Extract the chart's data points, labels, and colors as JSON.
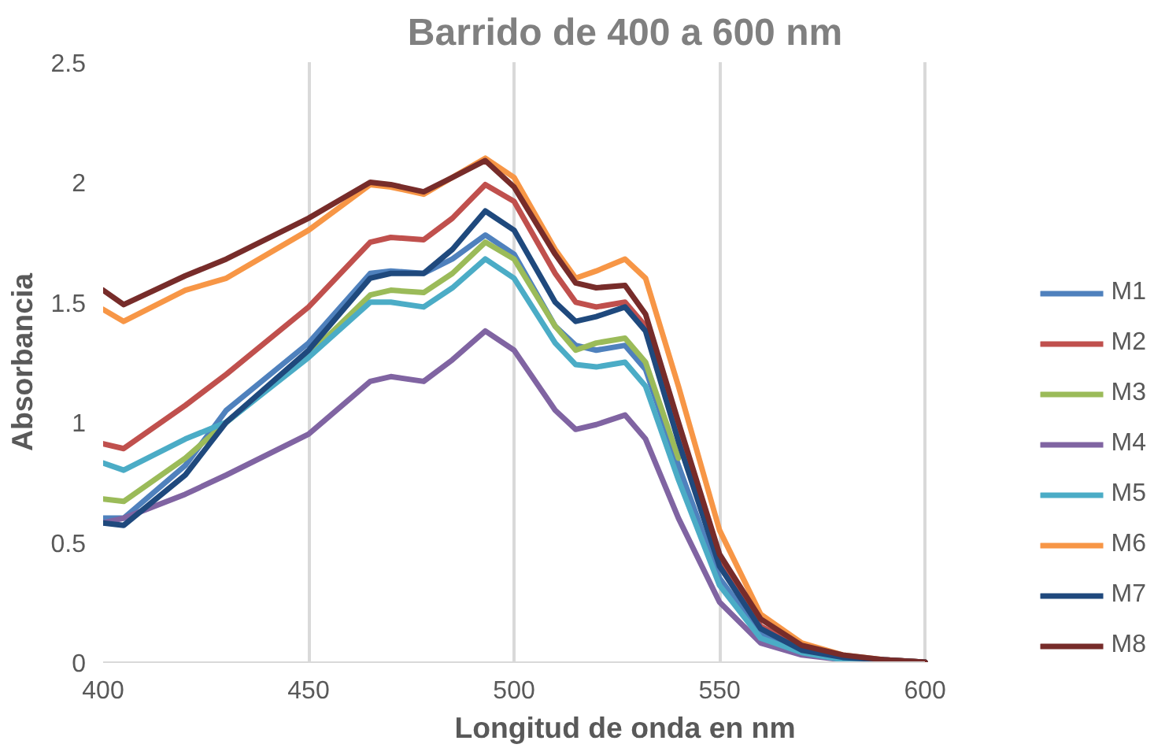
{
  "chart_data": {
    "type": "line",
    "title": "Barrido de 400 a 600 nm",
    "xlabel": "Longitud de onda en nm",
    "ylabel": "Absorbancia",
    "x": [
      400,
      405,
      420,
      430,
      450,
      465,
      470,
      478,
      485,
      493,
      500,
      510,
      515,
      520,
      527,
      532,
      540,
      550,
      560,
      570,
      580,
      590,
      600
    ],
    "xlim": [
      400,
      600
    ],
    "xticks": [
      400,
      450,
      500,
      550,
      600
    ],
    "ylim": [
      0,
      2.5
    ],
    "yticks": [
      0,
      {
        "value": 0.5,
        "label": "0.5"
      },
      1,
      {
        "value": 1.5,
        "label": "1.5"
      },
      2,
      {
        "value": 2.5,
        "label": "2.5"
      }
    ],
    "grid": "x",
    "legend": "right",
    "marker": "none",
    "line_style": "solid",
    "series": [
      {
        "name": "M1",
        "color": "#4f81bd",
        "values": [
          0.6,
          0.6,
          0.82,
          1.05,
          1.33,
          1.62,
          1.63,
          1.62,
          1.68,
          1.78,
          1.7,
          1.4,
          1.32,
          1.3,
          1.32,
          1.22,
          0.82,
          0.35,
          0.12,
          0.04,
          0.02,
          0.01,
          0
        ]
      },
      {
        "name": "M2",
        "color": "#c0504d",
        "values": [
          0.91,
          0.89,
          1.07,
          1.2,
          1.48,
          1.75,
          1.77,
          1.76,
          1.85,
          1.99,
          1.92,
          1.62,
          1.5,
          1.48,
          1.5,
          1.4,
          0.95,
          0.42,
          0.15,
          0.06,
          0.02,
          0.01,
          0
        ]
      },
      {
        "name": "M3",
        "color": "#9bbb59",
        "values": [
          0.68,
          0.67,
          0.85,
          1.0,
          1.28,
          1.53,
          1.55,
          1.54,
          1.62,
          1.75,
          1.68,
          1.4,
          1.3,
          1.33,
          1.35,
          1.25,
          0.85,
          null,
          null,
          null,
          null,
          null,
          null
        ]
      },
      {
        "name": "M4",
        "color": "#8064a2",
        "values": [
          0.58,
          0.6,
          0.7,
          0.78,
          0.95,
          1.17,
          1.19,
          1.17,
          1.26,
          1.38,
          1.3,
          1.05,
          0.97,
          0.99,
          1.03,
          0.93,
          0.6,
          0.25,
          0.08,
          0.03,
          0.01,
          0,
          0
        ]
      },
      {
        "name": "M5",
        "color": "#4bacc6",
        "values": [
          0.83,
          0.8,
          0.93,
          1.0,
          1.27,
          1.5,
          1.5,
          1.48,
          1.56,
          1.68,
          1.6,
          1.33,
          1.24,
          1.23,
          1.25,
          1.15,
          0.76,
          0.32,
          0.1,
          0.04,
          0.01,
          0,
          0
        ]
      },
      {
        "name": "M6",
        "color": "#f79646",
        "values": [
          1.47,
          1.42,
          1.55,
          1.6,
          1.8,
          1.99,
          1.98,
          1.95,
          2.02,
          2.1,
          2.02,
          1.72,
          1.6,
          1.63,
          1.68,
          1.6,
          1.15,
          0.55,
          0.2,
          0.08,
          0.03,
          0.01,
          0
        ]
      },
      {
        "name": "M7",
        "color": "#1f497d",
        "values": [
          0.58,
          0.57,
          0.78,
          1.0,
          1.3,
          1.6,
          1.62,
          1.62,
          1.72,
          1.88,
          1.8,
          1.5,
          1.42,
          1.44,
          1.48,
          1.38,
          0.92,
          0.4,
          0.14,
          0.05,
          0.02,
          0.01,
          0
        ]
      },
      {
        "name": "M8",
        "color": "#772c2a",
        "values": [
          1.55,
          1.49,
          1.61,
          1.68,
          1.85,
          2.0,
          1.99,
          1.96,
          2.02,
          2.09,
          1.98,
          1.7,
          1.58,
          1.56,
          1.57,
          1.45,
          1.0,
          0.45,
          0.18,
          0.07,
          0.03,
          0.01,
          0
        ]
      }
    ]
  }
}
